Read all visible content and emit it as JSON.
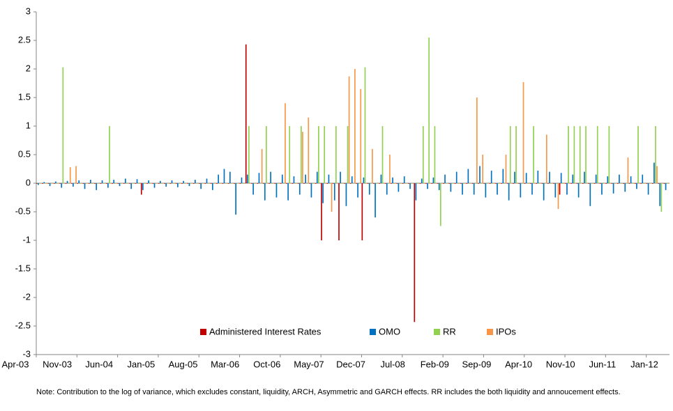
{
  "chart_data": {
    "type": "bar",
    "categories": [
      "Apr-03",
      null,
      null,
      null,
      null,
      null,
      null,
      "Nov-03",
      null,
      null,
      null,
      null,
      null,
      null,
      "Jun-04",
      null,
      null,
      null,
      null,
      null,
      null,
      "Jan-05",
      null,
      null,
      null,
      null,
      null,
      null,
      "Aug-05",
      null,
      null,
      null,
      null,
      null,
      null,
      "Mar-06",
      null,
      null,
      null,
      null,
      null,
      null,
      "Oct-06",
      null,
      null,
      null,
      null,
      null,
      null,
      "May-07",
      null,
      null,
      null,
      null,
      null,
      null,
      "Dec-07",
      null,
      null,
      null,
      null,
      null,
      null,
      "Jul-08",
      null,
      null,
      null,
      null,
      null,
      null,
      "Feb-09",
      null,
      null,
      null,
      null,
      null,
      null,
      "Sep-09",
      null,
      null,
      null,
      null,
      null,
      null,
      "Apr-10",
      null,
      null,
      null,
      null,
      null,
      null,
      "Nov-10",
      null,
      null,
      null,
      null,
      null,
      null,
      "Jun-11",
      null,
      null,
      null,
      null,
      null,
      null,
      "Jan-12",
      null,
      null,
      null
    ],
    "series": [
      {
        "name": "Administered Interest Rates",
        "color": "#c00000",
        "values": [
          0,
          0,
          0,
          0,
          0,
          0,
          0,
          0,
          0,
          0,
          0,
          0,
          0,
          0,
          0,
          0,
          0,
          0,
          -0.2,
          0,
          0,
          0,
          0,
          0,
          0,
          0,
          0,
          0,
          0,
          0,
          0,
          0,
          0,
          0,
          0,
          0,
          2.43,
          0,
          0,
          0,
          0,
          0,
          0,
          0,
          0,
          0,
          0,
          0,
          0,
          -1,
          0,
          0,
          -1,
          0,
          0,
          0,
          -1,
          0,
          0,
          0,
          0,
          0,
          0,
          0,
          0,
          -2.43,
          0,
          0,
          0,
          0,
          0,
          0,
          0,
          0,
          0,
          0,
          0,
          0,
          0,
          0,
          0,
          0,
          0,
          0,
          0,
          0,
          0,
          0,
          0,
          0,
          -0.2,
          0,
          0,
          0,
          0,
          0,
          0,
          0,
          0,
          0,
          0,
          0,
          0,
          0,
          0,
          0,
          0,
          0,
          0
        ]
      },
      {
        "name": "OMO",
        "color": "#0070c0",
        "values": [
          -0.03,
          0.02,
          -0.05,
          0.03,
          -0.08,
          0.04,
          -0.06,
          0.05,
          -0.1,
          0.06,
          -0.12,
          0.05,
          -0.08,
          0.06,
          -0.05,
          0.08,
          -0.1,
          0.07,
          -0.12,
          0.05,
          -0.08,
          0.04,
          -0.06,
          0.05,
          -0.07,
          0.04,
          -0.05,
          0.06,
          -0.1,
          0.08,
          -0.12,
          0.15,
          0.25,
          0.2,
          -0.55,
          0.1,
          0.15,
          -0.2,
          0.18,
          -0.3,
          0.2,
          -0.25,
          0.15,
          -0.3,
          0.12,
          -0.2,
          0.15,
          -0.25,
          0.2,
          -0.35,
          0.15,
          -0.3,
          0.2,
          -0.4,
          0.12,
          -0.25,
          0.1,
          -0.2,
          -0.6,
          0.15,
          -0.2,
          0.1,
          -0.15,
          0.12,
          -0.1,
          -0.3,
          0.08,
          -0.1,
          0.1,
          -0.12,
          0.15,
          -0.15,
          0.2,
          -0.2,
          0.25,
          -0.2,
          0.3,
          -0.25,
          0.22,
          -0.2,
          0.25,
          -0.3,
          0.2,
          -0.25,
          0.18,
          -0.2,
          0.22,
          -0.3,
          0.2,
          -0.25,
          0.18,
          -0.2,
          0.15,
          -0.25,
          0.2,
          -0.4,
          0.15,
          -0.2,
          0.12,
          -0.18,
          0.15,
          -0.15,
          0.12,
          -0.1,
          0.15,
          -0.2,
          0.36,
          -0.4,
          -0.12
        ]
      },
      {
        "name": "RR",
        "color": "#92d050",
        "values": [
          0,
          0,
          0,
          0,
          2.03,
          0,
          0,
          0,
          0,
          0,
          0,
          0,
          1,
          0,
          0,
          0,
          0,
          0,
          0,
          0,
          0,
          0,
          0,
          0,
          0,
          0,
          0,
          0,
          0,
          0,
          0,
          0,
          0,
          0,
          0,
          0,
          1,
          0,
          0,
          1,
          0,
          0,
          0,
          1,
          0,
          1,
          0,
          0,
          1,
          1,
          0,
          1,
          0,
          1,
          0,
          0,
          2.03,
          0,
          0,
          1,
          0,
          0,
          0,
          0,
          0,
          0,
          1,
          2.55,
          1,
          -0.75,
          0,
          0,
          0,
          0,
          0,
          0,
          0,
          0,
          0,
          0,
          0,
          1,
          1,
          0,
          0,
          1,
          0,
          0,
          0,
          0,
          0,
          1,
          1,
          1,
          1,
          0,
          1,
          0,
          1,
          0,
          0,
          0,
          0,
          1,
          0,
          0,
          1,
          -0.5,
          0
        ]
      },
      {
        "name": "IPOs",
        "color": "#f79646",
        "values": [
          0,
          0,
          0,
          0,
          0,
          0.28,
          0.3,
          0,
          0,
          0,
          0,
          0,
          0,
          0,
          0,
          0,
          0,
          0,
          0,
          0,
          0,
          0,
          0,
          0,
          0,
          0,
          0,
          0,
          0,
          0,
          0,
          0,
          0,
          0,
          0,
          0,
          0,
          0,
          0.6,
          0,
          0,
          0,
          1.4,
          0,
          0,
          0.9,
          1.15,
          0,
          0,
          0,
          -0.5,
          0,
          0,
          1.87,
          2,
          1.65,
          0,
          0.6,
          0,
          0,
          0.5,
          0,
          0,
          0,
          0,
          0,
          0,
          0,
          0,
          0,
          0,
          0,
          0,
          0,
          0,
          1.5,
          0.5,
          0,
          0,
          0,
          0.5,
          0,
          0,
          1.77,
          0,
          0,
          0,
          0.85,
          0,
          -0.45,
          0,
          0,
          0,
          0,
          0,
          0,
          0,
          0,
          0,
          0,
          0,
          0.45,
          0,
          0,
          0,
          0,
          0.3,
          0,
          0
        ]
      }
    ],
    "ylim": [
      -3,
      3
    ],
    "yticks": [
      -3,
      -2.5,
      -2,
      -1.5,
      -1,
      -0.5,
      0,
      0.5,
      1,
      1.5,
      2,
      2.5,
      3
    ],
    "note": "Note: Contribution to the log of variance, which excludes  constant, liquidity, ARCH, Asymmetric and GARCH effects. RR includes the both liquidity and annoucement effects."
  }
}
